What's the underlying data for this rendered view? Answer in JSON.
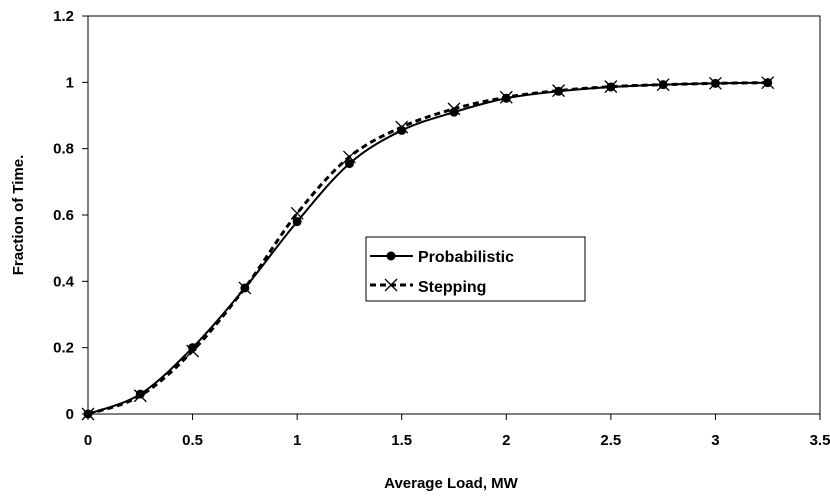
{
  "chart_data": {
    "type": "line",
    "xlabel": "Average Load, MW",
    "ylabel": "Fraction of Time.",
    "xlim": [
      0,
      3.5
    ],
    "ylim": [
      0,
      1.2
    ],
    "x_ticks": [
      "0",
      "0.5",
      "1",
      "1.5",
      "2",
      "2.5",
      "3",
      "3.5"
    ],
    "y_ticks": [
      "0",
      "0.2",
      "0.4",
      "0.6",
      "0.8",
      "1",
      "1.2"
    ],
    "grid": false,
    "legend_position": "center-right",
    "x": [
      0,
      0.25,
      0.5,
      0.75,
      1,
      1.25,
      1.5,
      1.75,
      2,
      2.25,
      2.5,
      2.75,
      3,
      3.25
    ],
    "series": [
      {
        "name": "Probabilistic",
        "style": "solid",
        "marker": "circle",
        "color": "#000000",
        "values": [
          0,
          0.06,
          0.2,
          0.38,
          0.58,
          0.755,
          0.855,
          0.91,
          0.952,
          0.973,
          0.986,
          0.993,
          0.997,
          0.999
        ]
      },
      {
        "name": "Stepping",
        "style": "dashed",
        "marker": "x",
        "color": "#000000",
        "values": [
          0,
          0.055,
          0.19,
          0.38,
          0.605,
          0.775,
          0.865,
          0.92,
          0.955,
          0.975,
          0.987,
          0.993,
          0.997,
          0.999
        ]
      }
    ]
  }
}
